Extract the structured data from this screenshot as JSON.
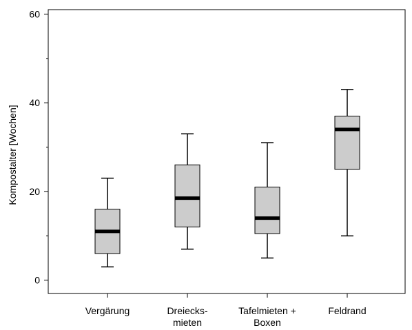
{
  "chart_data": {
    "type": "boxplot",
    "title": "",
    "xlabel": "",
    "ylabel": "Kompostalter [Wochen]",
    "ylim": [
      -3,
      61
    ],
    "y_ticks": [
      0,
      20,
      40,
      60
    ],
    "y_tick_labels": [
      "0",
      "20",
      "40",
      "60"
    ],
    "grid": false,
    "categories": [
      [
        "Vergärung"
      ],
      [
        "Dreiecks-",
        "mieten"
      ],
      [
        "Tafelmieten +",
        "Boxen"
      ],
      [
        "Feldrand"
      ]
    ],
    "boxes": [
      {
        "whisker_low": 3,
        "q1": 6,
        "median": 11,
        "q3": 16,
        "whisker_high": 23
      },
      {
        "whisker_low": 7,
        "q1": 12,
        "median": 18.5,
        "q3": 26,
        "whisker_high": 33
      },
      {
        "whisker_low": 5,
        "q1": 10.5,
        "median": 14,
        "q3": 21,
        "whisker_high": 31
      },
      {
        "whisker_low": 10,
        "q1": 25,
        "median": 34,
        "q3": 37,
        "whisker_high": 43
      }
    ],
    "colors": {
      "box_fill": "#cccccc",
      "line": "#000000",
      "median": "#000000"
    }
  }
}
